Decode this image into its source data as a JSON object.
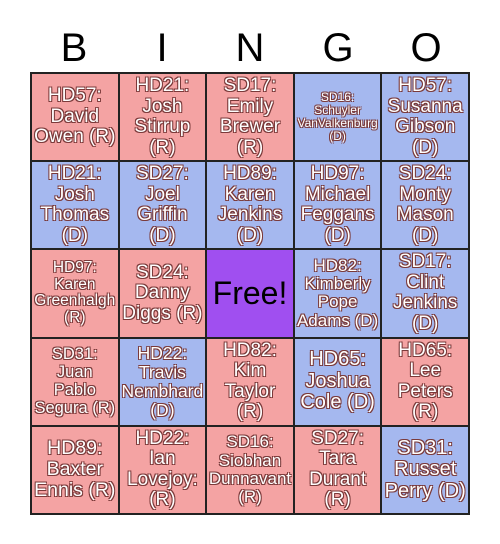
{
  "header": {
    "letters": [
      "B",
      "I",
      "N",
      "G",
      "O"
    ]
  },
  "card": {
    "rows": [
      [
        {
          "text": "HD57: David Owen (R)",
          "color": "#f4a3a3"
        },
        {
          "text": "HD21: Josh Stirrup (R)",
          "color": "#f4a3a3"
        },
        {
          "text": "SD17: Emily Brewer (R)",
          "color": "#f4a3a3"
        },
        {
          "text": "SD16: Schuyler VanValkenburg (D)",
          "color": "#a5b8ef"
        },
        {
          "text": "HD57: Susanna Gibson (D)",
          "color": "#a5b8ef"
        }
      ],
      [
        {
          "text": "HD21: Josh Thomas (D)",
          "color": "#a5b8ef"
        },
        {
          "text": "SD27: Joel Griffin (D)",
          "color": "#a5b8ef"
        },
        {
          "text": "HD89: Karen Jenkins (D)",
          "color": "#a5b8ef"
        },
        {
          "text": "HD97: Michael Feggans (D)",
          "color": "#a5b8ef"
        },
        {
          "text": "SD24: Monty Mason (D)",
          "color": "#a5b8ef"
        }
      ],
      [
        {
          "text": "HD97: Karen Greenhalgh (R)",
          "color": "#f4a3a3"
        },
        {
          "text": "SD24: Danny Diggs (R)",
          "color": "#f4a3a3"
        },
        {
          "text": "Free!",
          "color": "#a04ff0"
        },
        {
          "text": "HD82: Kimberly Pope Adams (D)",
          "color": "#a5b8ef"
        },
        {
          "text": "SD17: Clint Jenkins (D)",
          "color": "#a5b8ef"
        }
      ],
      [
        {
          "text": "SD31: Juan Pablo Segura (R)",
          "color": "#f4a3a3"
        },
        {
          "text": "HD22: Travis Nembhard (D)",
          "color": "#a5b8ef"
        },
        {
          "text": "HD82: Kim Taylor (R)",
          "color": "#f4a3a3"
        },
        {
          "text": "HD65: Joshua Cole (D)",
          "color": "#a5b8ef"
        },
        {
          "text": "HD65: Lee Peters (R)",
          "color": "#f4a3a3"
        }
      ],
      [
        {
          "text": "HD89: Baxter Ennis (R)",
          "color": "#f4a3a3"
        },
        {
          "text": "HD22: Ian Lovejoy: (R)",
          "color": "#f4a3a3"
        },
        {
          "text": "SD16: Siobhan Dunnavant (R)",
          "color": "#f4a3a3"
        },
        {
          "text": "SD27: Tara Durant (R)",
          "color": "#f4a3a3"
        },
        {
          "text": "SD31: Russet Perry (D)",
          "color": "#a5b8ef"
        }
      ]
    ]
  }
}
